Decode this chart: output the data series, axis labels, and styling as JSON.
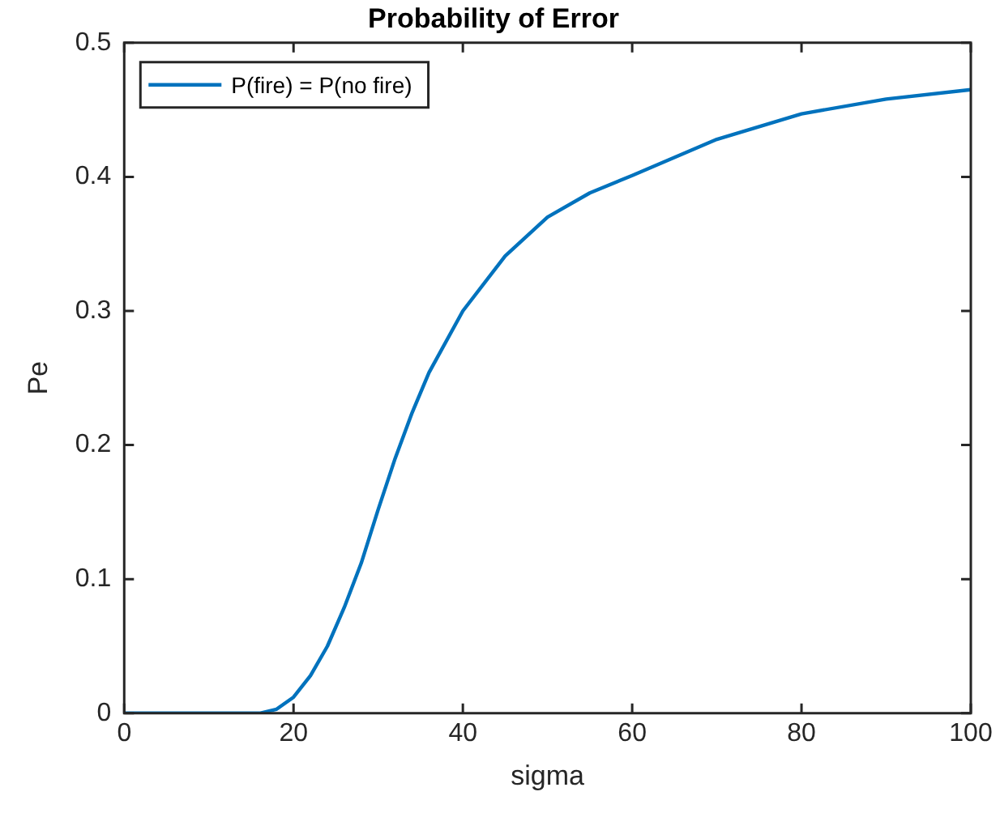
{
  "chart_data": {
    "type": "line",
    "title": "Probability of Error",
    "xlabel": "sigma",
    "ylabel": "Pe",
    "x": [
      0,
      5,
      10,
      16,
      18,
      20,
      22,
      24,
      26,
      28,
      30,
      32,
      34,
      36,
      40,
      45,
      50,
      55,
      60,
      70,
      80,
      90,
      100
    ],
    "series": [
      {
        "name": "P(fire) = P(no fire)",
        "color": "#0072bd",
        "values": [
          0,
          0,
          0,
          0,
          0.003,
          0.012,
          0.028,
          0.05,
          0.079,
          0.112,
          0.152,
          0.19,
          0.224,
          0.254,
          0.3,
          0.341,
          0.37,
          0.388,
          0.401,
          0.428,
          0.447,
          0.458,
          0.465
        ]
      }
    ],
    "xlim": [
      0,
      100
    ],
    "xticks": [
      0,
      20,
      40,
      60,
      80,
      100
    ],
    "ylim": [
      0,
      0.5
    ],
    "yticks": [
      0,
      0.1,
      0.2,
      0.3,
      0.4,
      0.5
    ],
    "grid": false,
    "legend": "top left",
    "marker": "none",
    "line_style": "solid"
  }
}
